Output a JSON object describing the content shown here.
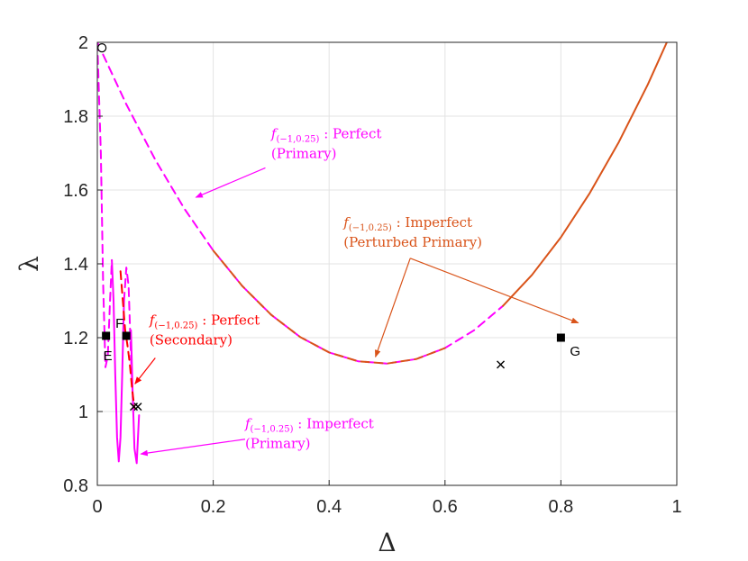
{
  "chart_data": {
    "type": "line",
    "xlabel": "Δ",
    "ylabel": "λ",
    "xlim": [
      0,
      1
    ],
    "ylim": [
      0.8,
      2
    ],
    "x_ticks": [
      "0",
      "0.2",
      "0.4",
      "0.6",
      "0.8",
      "1"
    ],
    "y_ticks": [
      "0.8",
      "1",
      "1.2",
      "1.4",
      "1.6",
      "1.8",
      "2"
    ],
    "grid": true,
    "colors": {
      "magenta": "#ff00ff",
      "orange": "#d95319",
      "red": "#ff0000",
      "black": "#000000"
    },
    "series": [
      {
        "style": "dashed",
        "color": "magenta",
        "x": [
          0.0,
          0.05,
          0.1,
          0.15,
          0.2,
          0.25,
          0.3,
          0.35,
          0.4,
          0.45,
          0.5,
          0.55,
          0.6,
          0.65,
          0.7
        ],
        "y": [
          2.0,
          1.832,
          1.682,
          1.55,
          1.436,
          1.34,
          1.262,
          1.202,
          1.16,
          1.136,
          1.13,
          1.142,
          1.172,
          1.22,
          1.286
        ]
      },
      {
        "style": "dashed",
        "color": "orange",
        "x": [
          0.2,
          0.25,
          0.3,
          0.35,
          0.4,
          0.45,
          0.5,
          0.55,
          0.6
        ],
        "y": [
          1.436,
          1.34,
          1.262,
          1.202,
          1.16,
          1.136,
          1.13,
          1.142,
          1.172
        ]
      },
      {
        "style": "solid",
        "color": "orange",
        "x": [
          0.7,
          0.75,
          0.8,
          0.85,
          0.9,
          0.95,
          1.0
        ],
        "y": [
          1.286,
          1.37,
          1.472,
          1.592,
          1.73,
          1.886,
          2.06
        ]
      },
      {
        "style": "dashed",
        "color": "magenta",
        "x": [
          0.0,
          0.006,
          0.01,
          0.014,
          0.018,
          0.022,
          0.025
        ],
        "y": [
          2.0,
          1.7,
          1.35,
          1.12,
          1.15,
          1.3,
          1.41
        ]
      },
      {
        "style": "solid",
        "color": "magenta",
        "x": [
          0.025,
          0.028,
          0.031,
          0.034,
          0.037,
          0.04,
          0.043,
          0.046
        ],
        "y": [
          1.41,
          1.3,
          1.1,
          0.93,
          0.865,
          0.93,
          1.1,
          1.3
        ]
      },
      {
        "style": "dashed",
        "color": "magenta",
        "x": [
          0.046,
          0.05,
          0.054,
          0.058,
          0.062
        ],
        "y": [
          1.3,
          1.39,
          1.34,
          1.15,
          1.01
        ]
      },
      {
        "style": "solid",
        "color": "magenta",
        "x": [
          0.058,
          0.061,
          0.064,
          0.068,
          0.072
        ],
        "y": [
          1.22,
          1.05,
          0.9,
          0.86,
          0.99
        ]
      },
      {
        "style": "dashed",
        "color": "red",
        "x": [
          0.04,
          0.044,
          0.048,
          0.052,
          0.056,
          0.06,
          0.064
        ],
        "y": [
          1.38,
          1.3,
          1.22,
          1.18,
          1.13,
          1.06,
          1.01
        ]
      }
    ],
    "markers": [
      {
        "label": "",
        "x": 0.008,
        "y": 1.985,
        "shape": "circle"
      },
      {
        "label": "E",
        "x": 0.015,
        "y": 1.205,
        "shape": "square"
      },
      {
        "label": "F",
        "x": 0.05,
        "y": 1.205,
        "shape": "square"
      },
      {
        "label": "G",
        "x": 0.8,
        "y": 1.2,
        "shape": "square"
      },
      {
        "label": "",
        "x": 0.063,
        "y": 1.013,
        "shape": "x"
      },
      {
        "label": "",
        "x": 0.07,
        "y": 1.013,
        "shape": "x"
      },
      {
        "label": "",
        "x": 0.696,
        "y": 1.127,
        "shape": "x"
      }
    ],
    "annotations": [
      {
        "line1_f": "f",
        "line1_sub": "(−1,0.25)",
        "line1_rest": " : Perfect",
        "line2": "(Primary)",
        "color": "magenta",
        "text_x": 0.3,
        "text_y": 1.74,
        "arrow_from": [
          0.29,
          1.66
        ],
        "arrow_to": [
          0.17,
          1.58
        ]
      },
      {
        "line1_f": "f",
        "line1_sub": "(−1,0.25)",
        "line1_rest": " : Imperfect",
        "line2": "(Perturbed Primary)",
        "color": "orange",
        "text_x": 0.425,
        "text_y": 1.5,
        "arrow_from": [
          0.54,
          1.415
        ],
        "arrow_to": [
          0.48,
          1.148
        ],
        "arrow_to_2": [
          0.83,
          1.24
        ]
      },
      {
        "line1_f": "f",
        "line1_sub": "(−1,0.25)",
        "line1_rest": " : Perfect",
        "line2": "(Secondary)",
        "color": "red",
        "text_x": 0.09,
        "text_y": 1.235,
        "arrow_from": [
          0.1,
          1.145
        ],
        "arrow_to": [
          0.065,
          1.075
        ]
      },
      {
        "line1_f": "f",
        "line1_sub": "(−1,0.25)",
        "line1_rest": " : Imperfect",
        "line2": "(Primary)",
        "color": "magenta",
        "text_x": 0.255,
        "text_y": 0.955,
        "arrow_from": [
          0.255,
          0.925
        ],
        "arrow_to": [
          0.075,
          0.885
        ]
      }
    ]
  }
}
